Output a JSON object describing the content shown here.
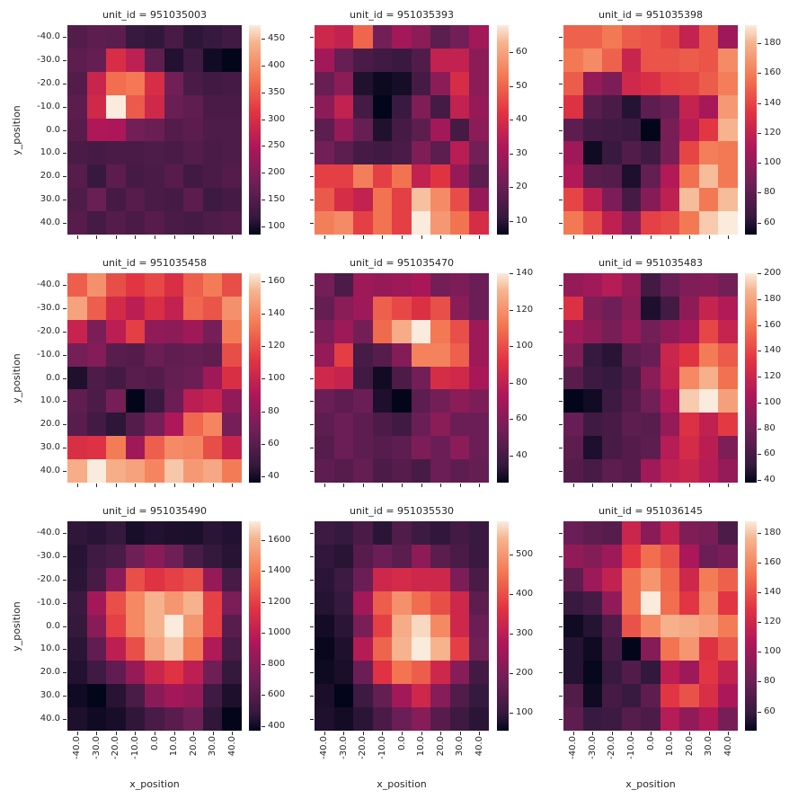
{
  "figure": {
    "background": "#ffffff",
    "text_color": "#262626"
  },
  "colormap": {
    "name": "rocket",
    "anchors": [
      {
        "t": 0.0,
        "color": "#03051A"
      },
      {
        "t": 0.083,
        "color": "#35193E"
      },
      {
        "t": 0.25,
        "color": "#701F57"
      },
      {
        "t": 0.417,
        "color": "#AD1759"
      },
      {
        "t": 0.583,
        "color": "#E13342"
      },
      {
        "t": 0.75,
        "color": "#F37651"
      },
      {
        "t": 0.917,
        "color": "#F6B48F"
      },
      {
        "t": 1.0,
        "color": "#FAEBDD"
      }
    ]
  },
  "axis": {
    "xlabel": "x_position",
    "ylabel": "y_position",
    "x_tick_labels": [
      "-40.0",
      "-30.0",
      "-20.0",
      "-10.0",
      "0.0",
      "10.0",
      "20.0",
      "30.0",
      "40.0"
    ],
    "y_tick_labels": [
      "-40.0",
      "-30.0",
      "-20.0",
      "-10.0",
      "0.0",
      "10.0",
      "20.0",
      "30.0",
      "40.0"
    ]
  },
  "chart_data": {
    "type": "heatmap",
    "layout": "3x3 facet grid, one colorbar per facet",
    "facet_by": "unit_id",
    "xlabel": "x_position",
    "ylabel": "y_position",
    "x_values": [
      -40,
      -30,
      -20,
      -10,
      0,
      10,
      20,
      30,
      40
    ],
    "y_values": [
      -40,
      -30,
      -20,
      -10,
      0,
      10,
      20,
      30,
      40
    ],
    "facets": [
      {
        "unit_id": "951035003",
        "title": "unit_id = 951035003",
        "colorbar_ticks": [
          100,
          150,
          200,
          250,
          300,
          350,
          400,
          450
        ],
        "values": [
          [
            150,
            162,
            158,
            120,
            115,
            138,
            112,
            120,
            130
          ],
          [
            162,
            170,
            300,
            268,
            165,
            105,
            128,
            95,
            85
          ],
          [
            150,
            280,
            370,
            380,
            300,
            185,
            140,
            130,
            135
          ],
          [
            160,
            290,
            475,
            350,
            290,
            175,
            165,
            140,
            140
          ],
          [
            155,
            250,
            248,
            185,
            175,
            150,
            160,
            145,
            145
          ],
          [
            140,
            135,
            140,
            142,
            145,
            140,
            152,
            140,
            145
          ],
          [
            155,
            120,
            160,
            135,
            140,
            155,
            130,
            140,
            150
          ],
          [
            145,
            175,
            135,
            155,
            140,
            135,
            160,
            125,
            135
          ],
          [
            155,
            135,
            150,
            140,
            155,
            140,
            135,
            145,
            150
          ]
        ]
      },
      {
        "unit_id": "951035393",
        "title": "unit_id = 951035393",
        "colorbar_ticks": [
          10,
          20,
          30,
          40,
          50,
          60
        ],
        "values": [
          [
            38,
            36,
            50,
            22,
            30,
            26,
            18,
            22,
            30
          ],
          [
            30,
            20,
            15,
            13,
            12,
            16,
            36,
            36,
            26
          ],
          [
            20,
            26,
            9,
            7,
            8,
            14,
            26,
            40,
            26
          ],
          [
            26,
            36,
            14,
            6,
            12,
            24,
            14,
            36,
            28
          ],
          [
            18,
            28,
            20,
            9,
            14,
            18,
            30,
            14,
            26
          ],
          [
            22,
            18,
            14,
            13,
            15,
            24,
            18,
            34,
            22
          ],
          [
            44,
            44,
            54,
            44,
            52,
            36,
            42,
            28,
            18
          ],
          [
            48,
            40,
            36,
            52,
            44,
            64,
            56,
            46,
            28
          ],
          [
            54,
            56,
            44,
            52,
            44,
            68,
            58,
            52,
            40
          ]
        ]
      },
      {
        "unit_id": "951035398",
        "title": "unit_id = 951035398",
        "colorbar_ticks": [
          60,
          80,
          100,
          120,
          140,
          160,
          180
        ],
        "values": [
          [
            150,
            150,
            158,
            148,
            145,
            140,
            120,
            145,
            105
          ],
          [
            158,
            165,
            150,
            122,
            145,
            145,
            148,
            145,
            165
          ],
          [
            148,
            100,
            92,
            125,
            130,
            138,
            140,
            148,
            160
          ],
          [
            132,
            78,
            72,
            60,
            80,
            85,
            120,
            108,
            170
          ],
          [
            80,
            70,
            68,
            66,
            52,
            90,
            115,
            135,
            180
          ],
          [
            105,
            55,
            65,
            75,
            68,
            90,
            140,
            160,
            158
          ],
          [
            112,
            78,
            76,
            58,
            82,
            112,
            155,
            182,
            158
          ],
          [
            140,
            118,
            92,
            70,
            95,
            118,
            182,
            158,
            182
          ],
          [
            158,
            142,
            118,
            98,
            138,
            142,
            158,
            185,
            192
          ]
        ]
      },
      {
        "unit_id": "951035458",
        "title": "unit_id = 951035458",
        "colorbar_ticks": [
          40,
          60,
          80,
          100,
          120,
          140,
          160
        ],
        "values": [
          [
            125,
            142,
            120,
            112,
            118,
            108,
            125,
            135,
            120
          ],
          [
            148,
            125,
            105,
            95,
            108,
            98,
            128,
            122,
            142
          ],
          [
            100,
            72,
            95,
            115,
            80,
            78,
            85,
            70,
            135
          ],
          [
            70,
            75,
            60,
            58,
            66,
            62,
            64,
            62,
            120
          ],
          [
            42,
            56,
            52,
            60,
            58,
            64,
            66,
            85,
            108
          ],
          [
            62,
            55,
            70,
            36,
            48,
            66,
            95,
            100,
            80
          ],
          [
            60,
            52,
            45,
            58,
            70,
            90,
            128,
            138,
            70
          ],
          [
            108,
            110,
            135,
            85,
            125,
            140,
            138,
            120,
            100
          ],
          [
            152,
            165,
            152,
            148,
            138,
            158,
            145,
            150,
            135
          ]
        ]
      },
      {
        "unit_id": "951035470",
        "title": "unit_id = 951035470",
        "colorbar_ticks": [
          40,
          60,
          80,
          100,
          120,
          140
        ],
        "values": [
          [
            55,
            42,
            68,
            66,
            68,
            72,
            55,
            58,
            52
          ],
          [
            50,
            62,
            68,
            105,
            98,
            90,
            100,
            62,
            52
          ],
          [
            58,
            68,
            55,
            108,
            128,
            140,
            112,
            100,
            68
          ],
          [
            65,
            95,
            40,
            45,
            60,
            115,
            115,
            105,
            68
          ],
          [
            85,
            82,
            38,
            28,
            42,
            55,
            88,
            85,
            72
          ],
          [
            52,
            48,
            52,
            30,
            25,
            48,
            55,
            62,
            58
          ],
          [
            48,
            52,
            48,
            42,
            38,
            52,
            62,
            52,
            52
          ],
          [
            45,
            52,
            48,
            45,
            48,
            58,
            52,
            62,
            52
          ],
          [
            48,
            45,
            50,
            42,
            45,
            40,
            52,
            48,
            50
          ]
        ]
      },
      {
        "unit_id": "951035483",
        "title": "unit_id = 951035483",
        "colorbar_ticks": [
          40,
          60,
          80,
          100,
          120,
          140,
          160,
          180,
          200
        ],
        "values": [
          [
            95,
            100,
            110,
            95,
            58,
            75,
            85,
            88,
            80
          ],
          [
            130,
            85,
            78,
            90,
            45,
            58,
            92,
            118,
            108
          ],
          [
            100,
            92,
            82,
            95,
            80,
            92,
            102,
            140,
            118
          ],
          [
            85,
            52,
            48,
            70,
            75,
            120,
            132,
            162,
            148
          ],
          [
            68,
            55,
            52,
            62,
            90,
            118,
            168,
            185,
            158
          ],
          [
            38,
            42,
            55,
            66,
            80,
            108,
            192,
            200,
            178
          ],
          [
            75,
            56,
            60,
            70,
            68,
            95,
            130,
            115,
            135
          ],
          [
            70,
            45,
            60,
            66,
            70,
            110,
            125,
            112,
            85
          ],
          [
            66,
            60,
            70,
            66,
            100,
            115,
            120,
            110,
            95
          ]
        ]
      },
      {
        "unit_id": "951035490",
        "title": "unit_id = 951035490",
        "colorbar_ticks": [
          400,
          600,
          800,
          1000,
          1200,
          1400,
          1600
        ],
        "values": [
          [
            470,
            455,
            480,
            420,
            440,
            430,
            425,
            460,
            440
          ],
          [
            450,
            520,
            560,
            700,
            800,
            700,
            560,
            480,
            450
          ],
          [
            460,
            550,
            800,
            1250,
            1150,
            1200,
            1250,
            850,
            550
          ],
          [
            500,
            900,
            1250,
            1450,
            1600,
            1500,
            1600,
            1200,
            750
          ],
          [
            480,
            800,
            1200,
            1450,
            1600,
            1720,
            1500,
            1200,
            620
          ],
          [
            460,
            650,
            1000,
            1250,
            1550,
            1650,
            1400,
            950,
            560
          ],
          [
            440,
            520,
            650,
            850,
            1050,
            1150,
            1000,
            700,
            480
          ],
          [
            400,
            370,
            450,
            560,
            800,
            900,
            850,
            520,
            430
          ],
          [
            430,
            400,
            420,
            470,
            560,
            620,
            700,
            470,
            370
          ]
        ]
      },
      {
        "unit_id": "951035530",
        "title": "unit_id = 951035530",
        "colorbar_ticks": [
          100,
          200,
          300,
          400,
          500
        ],
        "values": [
          [
            110,
            100,
            130,
            90,
            140,
            110,
            95,
            120,
            105
          ],
          [
            95,
            88,
            150,
            180,
            155,
            230,
            155,
            130,
            105
          ],
          [
            90,
            110,
            180,
            330,
            340,
            330,
            330,
            205,
            130
          ],
          [
            85,
            100,
            260,
            420,
            490,
            440,
            400,
            330,
            160
          ],
          [
            70,
            90,
            200,
            380,
            530,
            570,
            480,
            330,
            180
          ],
          [
            60,
            80,
            290,
            430,
            540,
            585,
            540,
            380,
            190
          ],
          [
            65,
            75,
            180,
            360,
            450,
            420,
            330,
            220,
            120
          ],
          [
            75,
            55,
            110,
            170,
            260,
            330,
            220,
            140,
            100
          ],
          [
            80,
            70,
            90,
            130,
            180,
            220,
            150,
            110,
            90
          ]
        ]
      },
      {
        "unit_id": "951036145",
        "title": "unit_id = 951036145",
        "colorbar_ticks": [
          60,
          80,
          100,
          120,
          140,
          160,
          180
        ],
        "values": [
          [
            80,
            75,
            72,
            118,
            92,
            115,
            88,
            85,
            68
          ],
          [
            95,
            90,
            100,
            130,
            150,
            140,
            105,
            80,
            85
          ],
          [
            75,
            100,
            115,
            150,
            165,
            148,
            120,
            155,
            145
          ],
          [
            60,
            65,
            95,
            150,
            188,
            150,
            130,
            160,
            130
          ],
          [
            50,
            55,
            70,
            140,
            160,
            175,
            172,
            168,
            155
          ],
          [
            55,
            50,
            65,
            47,
            90,
            152,
            165,
            128,
            142
          ],
          [
            55,
            48,
            60,
            70,
            58,
            112,
            100,
            130,
            115
          ],
          [
            70,
            50,
            65,
            60,
            75,
            130,
            140,
            125,
            105
          ],
          [
            75,
            60,
            62,
            72,
            68,
            110,
            95,
            108,
            85
          ]
        ]
      }
    ]
  }
}
